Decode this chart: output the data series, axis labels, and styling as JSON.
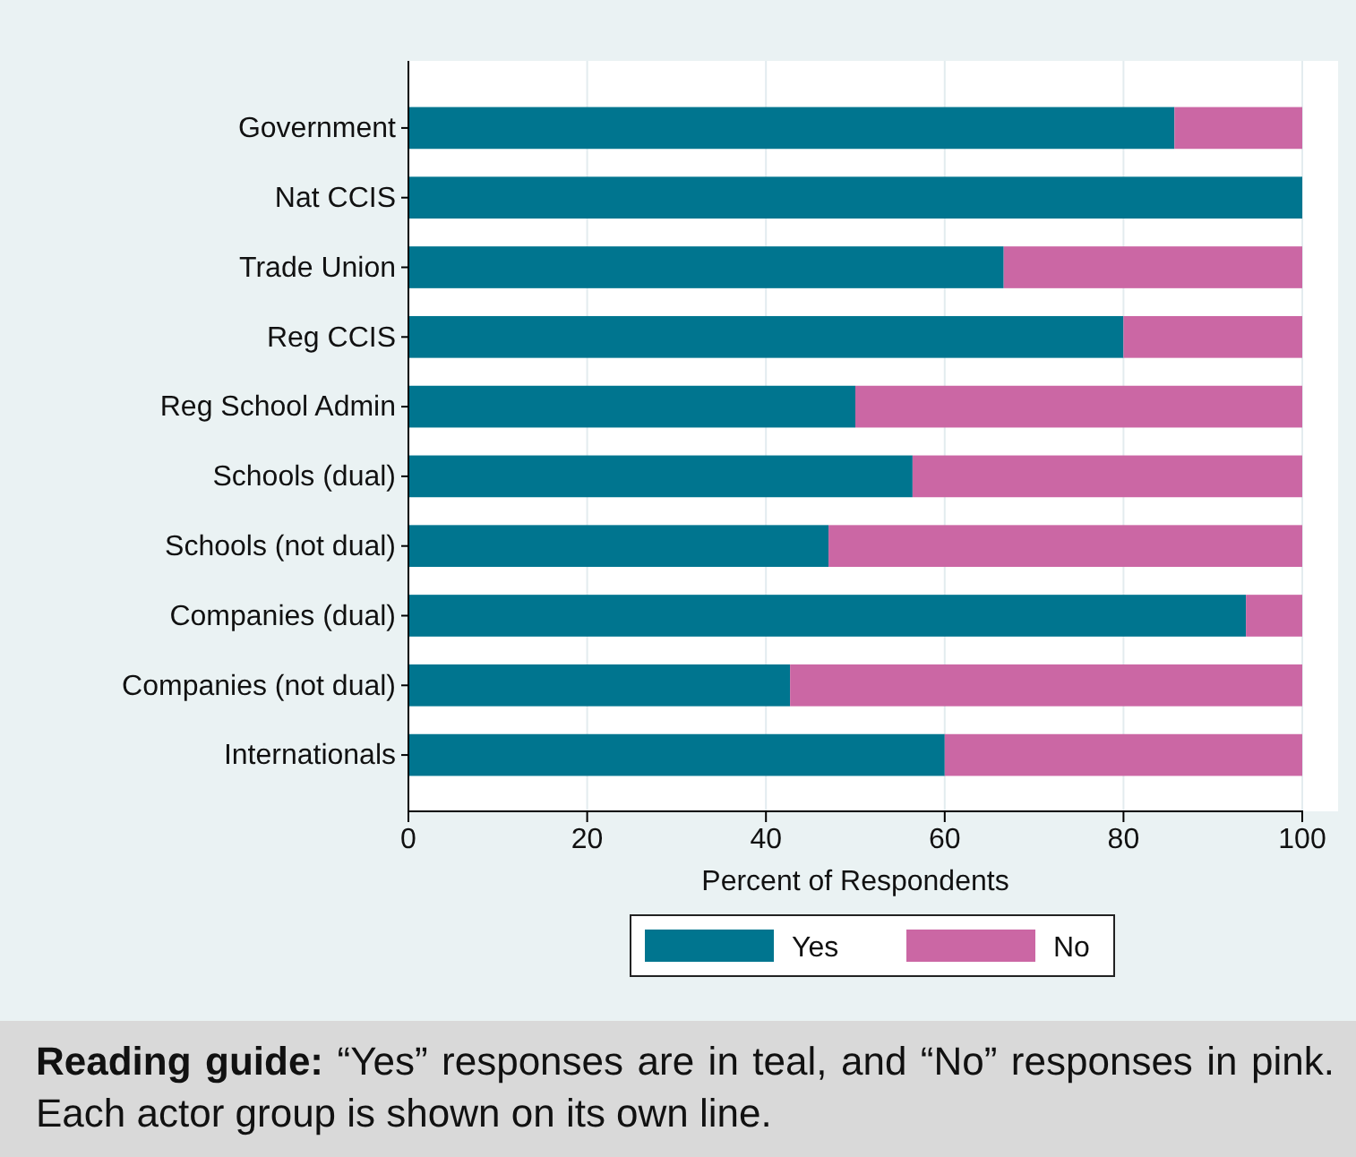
{
  "chart_data": {
    "type": "bar",
    "orientation": "horizontal",
    "stacked": true,
    "categories": [
      "Government",
      "Nat CCIS",
      "Trade Union",
      "Reg CCIS",
      "Reg School Admin",
      "Schools (dual)",
      "Schools (not dual)",
      "Companies (dual)",
      "Companies (not dual)",
      "Internationals"
    ],
    "series": [
      {
        "name": "Yes",
        "color": "#00758f",
        "values": [
          85.7,
          100,
          66.6,
          80,
          50,
          56.4,
          47,
          93.7,
          42.7,
          60
        ]
      },
      {
        "name": "No",
        "color": "#cb67a4",
        "values": [
          14.3,
          0,
          33.4,
          20,
          50,
          43.6,
          53,
          6.3,
          57.3,
          40
        ]
      }
    ],
    "xlabel": "Percent of Respondents",
    "xlim": [
      0,
      100
    ],
    "xticks": [
      0,
      20,
      40,
      60,
      80,
      100
    ],
    "grid": "x",
    "legend": "bottom",
    "annotations": [
      "**Reading guide:** “Yes” responses are in teal, and “No” responses in pink. Each actor group is shown on its own line."
    ]
  }
}
